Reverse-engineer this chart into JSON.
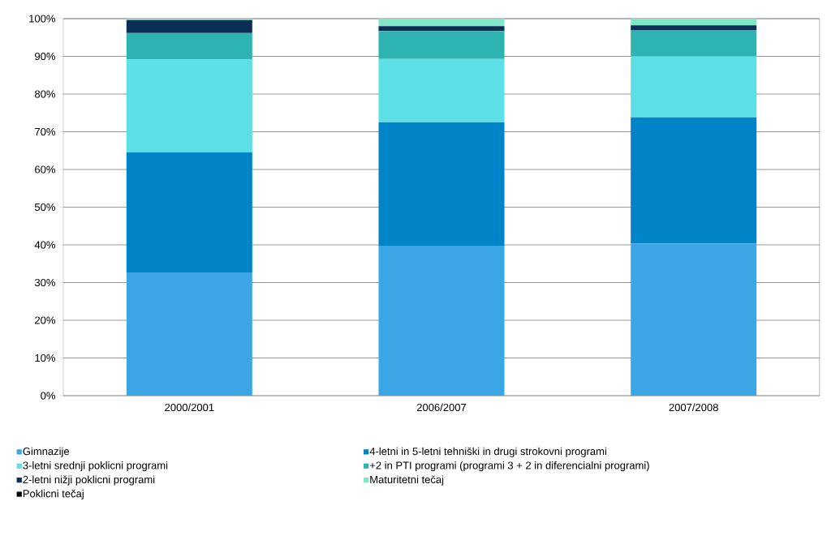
{
  "chart_data": {
    "type": "bar",
    "stacked": true,
    "categories": [
      "2000/2001",
      "2006/2007",
      "2007/2008"
    ],
    "series": [
      {
        "name": "Gimnazije",
        "color": "#3aa6e6",
        "values": [
          32.7,
          39.6,
          40.4
        ]
      },
      {
        "name": "4-letni in 5-letni tehniški in drugi strokovni programi",
        "color": "#0084c8",
        "values": [
          31.8,
          32.9,
          33.4
        ]
      },
      {
        "name": "3-letni srednji poklicni programi",
        "color": "#5ce0e6",
        "values": [
          24.7,
          16.8,
          16.2
        ]
      },
      {
        "name": "+2 in PTI programi (programi 3 + 2 in diferencialni programi)",
        "color": "#2eb3b3",
        "values": [
          7.0,
          7.4,
          7.0
        ]
      },
      {
        "name": "2-letni nižji poklicni programi",
        "color": "#0a2e55",
        "values": [
          3.4,
          1.3,
          1.2
        ]
      },
      {
        "name": "Maturitetni tečaj",
        "color": "#7ee8c8",
        "values": [
          0.4,
          2.0,
          1.8
        ]
      },
      {
        "name": "Poklicni tečaj",
        "values": [
          0,
          0,
          0
        ]
      }
    ],
    "ylim": [
      0,
      100
    ],
    "yticks": [
      {
        "value": 0,
        "label": "0%"
      },
      {
        "value": 10,
        "label": "10%"
      },
      {
        "value": 20,
        "label": "20%"
      },
      {
        "value": 30,
        "label": "30%"
      },
      {
        "value": 40,
        "label": "40%"
      },
      {
        "value": 50,
        "label": "50%"
      },
      {
        "value": 60,
        "label": "60%"
      },
      {
        "value": 70,
        "label": "70%"
      },
      {
        "value": 80,
        "label": "80%"
      },
      {
        "value": 90,
        "label": "90%"
      },
      {
        "value": 100,
        "label": "100%"
      }
    ],
    "grid": "y",
    "legend": "bottom"
  }
}
